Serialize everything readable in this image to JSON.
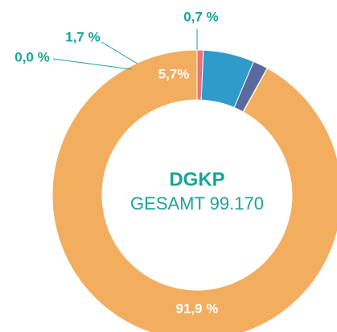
{
  "chart_data": {
    "type": "donut",
    "title": "DGKP",
    "subtitle": "GESAMT 99.170",
    "values": [
      0.7,
      5.7,
      1.7,
      0.0,
      91.9
    ],
    "value_labels": [
      "0,7 %",
      "5,7%",
      "1,7 %",
      "0,0 %",
      "91,9 %"
    ],
    "colors": [
      "#e8757a",
      "#2e9bcb",
      "#5a6a9e",
      "#f3d47a",
      "#f2ad5e"
    ]
  }
}
